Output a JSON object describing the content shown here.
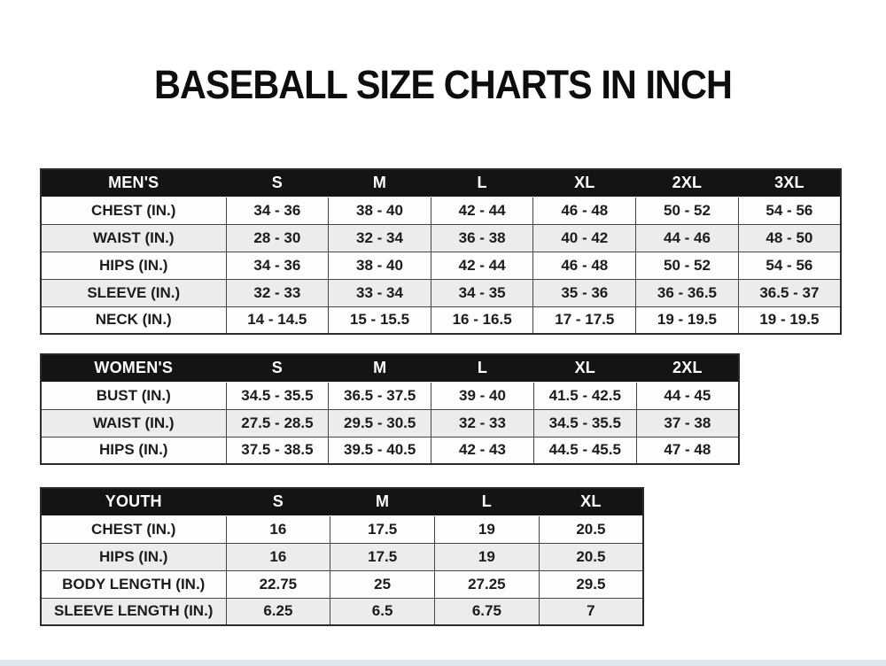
{
  "page": {
    "title": "BASEBALL SIZE CHARTS IN INCH"
  },
  "colors": {
    "header_bg": "#141414",
    "header_text": "#ffffff",
    "row_odd": "#fdfdfd",
    "row_even": "#ececec",
    "border": "#454545",
    "text": "#1c1c1c",
    "page_bg": "#ffffff",
    "bottom_strip": "#dfe7ed"
  },
  "tables": [
    {
      "id": "mens",
      "columns": [
        "MEN'S",
        "S",
        "M",
        "L",
        "XL",
        "2XL",
        "3XL"
      ],
      "rows": [
        [
          "CHEST (IN.)",
          "34 - 36",
          "38 - 40",
          "42 - 44",
          "46 - 48",
          "50 - 52",
          "54 - 56"
        ],
        [
          "WAIST (IN.)",
          "28 - 30",
          "32 - 34",
          "36 - 38",
          "40 - 42",
          "44 - 46",
          "48 - 50"
        ],
        [
          "HIPS (IN.)",
          "34 - 36",
          "38 - 40",
          "42 - 44",
          "46 - 48",
          "50 - 52",
          "54 - 56"
        ],
        [
          "SLEEVE (IN.)",
          "32 - 33",
          "33 - 34",
          "34 - 35",
          "35 - 36",
          "36 - 36.5",
          "36.5 - 37"
        ],
        [
          "NECK (IN.)",
          "14 - 14.5",
          "15 - 15.5",
          "16 - 16.5",
          "17 - 17.5",
          "19 - 19.5",
          "19 - 19.5"
        ]
      ]
    },
    {
      "id": "womens",
      "columns": [
        "WOMEN'S",
        "S",
        "M",
        "L",
        "XL",
        "2XL"
      ],
      "rows": [
        [
          "BUST (IN.)",
          "34.5 - 35.5",
          "36.5 - 37.5",
          "39 - 40",
          "41.5 - 42.5",
          "44 - 45"
        ],
        [
          "WAIST (IN.)",
          "27.5 - 28.5",
          "29.5 - 30.5",
          "32 - 33",
          "34.5 - 35.5",
          "37 - 38"
        ],
        [
          "HIPS (IN.)",
          "37.5 - 38.5",
          "39.5 - 40.5",
          "42 - 43",
          "44.5 - 45.5",
          "47 - 48"
        ]
      ]
    },
    {
      "id": "youth",
      "columns": [
        "YOUTH",
        "S",
        "M",
        "L",
        "XL"
      ],
      "rows": [
        [
          "CHEST (IN.)",
          "16",
          "17.5",
          "19",
          "20.5"
        ],
        [
          "HIPS (IN.)",
          "16",
          "17.5",
          "19",
          "20.5"
        ],
        [
          "BODY LENGTH (IN.)",
          "22.75",
          "25",
          "27.25",
          "29.5"
        ],
        [
          "SLEEVE LENGTH (IN.)",
          "6.25",
          "6.5",
          "6.75",
          "7"
        ]
      ]
    }
  ]
}
